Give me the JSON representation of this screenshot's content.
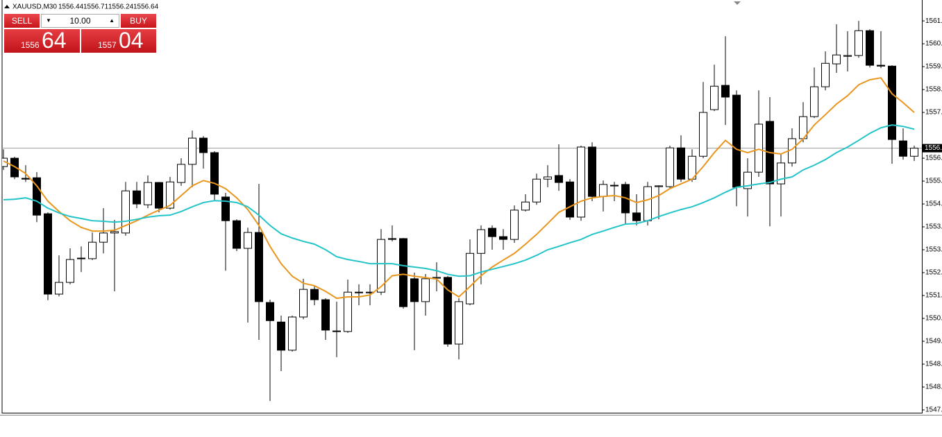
{
  "header": {
    "symbol": "XAUUSD,M30",
    "ohlc": [
      1556.44,
      1556.71,
      1556.24,
      1556.64
    ]
  },
  "trade_panel": {
    "sell": "SELL",
    "buy": "BUY",
    "lots": "10.00",
    "bid_big": "1556",
    "bid_small": "64",
    "ask_big": "1557",
    "ask_small": "04"
  },
  "chart_data": {
    "type": "candlestick",
    "ylim": [
      1547.16,
      1561.7
    ],
    "yticks": [
      {
        "value": 1561.2,
        "label": "1561."
      },
      {
        "value": 1560.38,
        "label": "1560."
      },
      {
        "value": 1559.56,
        "label": "1559."
      },
      {
        "value": 1558.74,
        "label": "1558."
      },
      {
        "value": 1557.92,
        "label": "1557."
      },
      {
        "value": 1556.28,
        "label": "1556."
      },
      {
        "value": 1555.46,
        "label": "1555."
      },
      {
        "value": 1554.64,
        "label": "1554."
      },
      {
        "value": 1553.82,
        "label": "1553."
      },
      {
        "value": 1553.0,
        "label": "1553."
      },
      {
        "value": 1552.18,
        "label": "1552."
      },
      {
        "value": 1551.36,
        "label": "1551."
      },
      {
        "value": 1550.54,
        "label": "1550."
      },
      {
        "value": 1549.72,
        "label": "1549."
      },
      {
        "value": 1548.9,
        "label": "1548."
      },
      {
        "value": 1548.08,
        "label": "1548."
      },
      {
        "value": 1547.26,
        "label": "1547."
      }
    ],
    "current_price": {
      "value": 1556.64,
      "label": "1556."
    },
    "up_color": "#ffffff",
    "down_color": "#000000",
    "open": [
      1555.98,
      1556.28,
      1555.56,
      1555.58,
      1554.29,
      1551.41,
      1551.83,
      1552.68,
      1552.68,
      1553.27,
      1553.6,
      1553.6,
      1555.11,
      1554.61,
      1555.41,
      1554.49,
      1555.41,
      1556.06,
      1557.0,
      1556.48,
      1554.89,
      1554.04,
      1553.05,
      1553.62,
      1551.11,
      1550.41,
      1549.4,
      1550.59,
      1551.58,
      1551.21,
      1550.09,
      1550.07,
      1551.46,
      1551.48,
      1551.48,
      1553.4,
      1553.4,
      1551.96,
      1551.14,
      1551.98,
      1552.01,
      1549.62,
      1551.06,
      1552.87,
      1553.77,
      1553.47,
      1553.37,
      1554.42,
      1554.71,
      1555.53,
      1555.66,
      1555.43,
      1554.17,
      1556.68,
      1554.91,
      1555.31,
      1555.34,
      1554.32,
      1554.04,
      1555.26,
      1555.26,
      1556.65,
      1555.53,
      1556.35,
      1558.02,
      1558.89,
      1558.54,
      1555.19,
      1555.78,
      1557.6,
      1555.36,
      1556.11,
      1556.98,
      1557.77,
      1558.84,
      1559.66,
      1559.93,
      1559.96,
      1560.85,
      1559.61,
      1559.58,
      1556.9,
      1556.35
    ],
    "high": [
      1556.6,
      1556.33,
      1556.03,
      1555.78,
      1554.34,
      1552.8,
      1553.05,
      1553.12,
      1553.62,
      1554.49,
      1554.07,
      1555.43,
      1555.43,
      1555.66,
      1555.43,
      1555.61,
      1556.28,
      1557.27,
      1557.07,
      1556.53,
      1555.04,
      1554.09,
      1553.79,
      1555.36,
      1551.21,
      1550.64,
      1550.64,
      1551.96,
      1551.71,
      1551.26,
      1551.14,
      1551.93,
      1551.76,
      1551.76,
      1553.74,
      1553.87,
      1553.42,
      1552.18,
      1552.13,
      1552.55,
      1552.06,
      1551.26,
      1553.37,
      1553.87,
      1553.87,
      1553.74,
      1554.59,
      1554.99,
      1555.73,
      1556.03,
      1556.78,
      1555.53,
      1556.73,
      1556.85,
      1555.48,
      1555.43,
      1555.43,
      1554.99,
      1555.43,
      1555.31,
      1556.73,
      1557.1,
      1556.6,
      1559.01,
      1559.63,
      1560.65,
      1558.71,
      1556.28,
      1558.71,
      1558.47,
      1556.43,
      1557.35,
      1558.29,
      1559.53,
      1560.11,
      1561.08,
      1560.83,
      1561.2,
      1560.9,
      1560.83,
      1559.61,
      1557.35,
      1556.73
    ],
    "low": [
      1555.86,
      1555.53,
      1555.43,
      1553.99,
      1551.19,
      1551.33,
      1551.76,
      1552.2,
      1552.63,
      1552.87,
      1551.51,
      1553.5,
      1554.49,
      1554.49,
      1554.34,
      1554.44,
      1555.29,
      1555.24,
      1555.91,
      1554.74,
      1552.25,
      1552.95,
      1550.39,
      1549.77,
      1547.58,
      1548.65,
      1549.35,
      1550.51,
      1551.01,
      1549.77,
      1549.15,
      1550.02,
      1551.01,
      1551.01,
      1551.38,
      1553.3,
      1550.89,
      1549.4,
      1550.64,
      1551.51,
      1549.52,
      1549.07,
      1551.01,
      1551.76,
      1553.0,
      1553.0,
      1553.25,
      1554.37,
      1554.61,
      1555.24,
      1555.11,
      1554.07,
      1554.04,
      1554.74,
      1554.37,
      1554.74,
      1553.92,
      1553.87,
      1553.87,
      1554.09,
      1555.19,
      1555.43,
      1555.43,
      1556.28,
      1557.97,
      1557.47,
      1554.56,
      1554.19,
      1555.61,
      1553.84,
      1554.19,
      1555.98,
      1556.85,
      1557.72,
      1558.71,
      1559.34,
      1559.39,
      1559.88,
      1559.53,
      1559.51,
      1556.08,
      1556.23,
      1556.18
    ],
    "close": [
      1556.28,
      1555.61,
      1555.53,
      1554.24,
      1551.41,
      1551.83,
      1552.65,
      1552.7,
      1553.27,
      1553.6,
      1553.65,
      1555.11,
      1554.64,
      1555.41,
      1554.49,
      1555.43,
      1556.06,
      1557.0,
      1556.48,
      1554.99,
      1554.04,
      1553.05,
      1553.62,
      1551.14,
      1550.46,
      1549.4,
      1550.59,
      1551.58,
      1551.21,
      1550.12,
      1550.07,
      1551.48,
      1551.48,
      1551.46,
      1553.37,
      1553.37,
      1550.96,
      1551.14,
      1551.96,
      1552.01,
      1549.62,
      1551.14,
      1552.87,
      1553.72,
      1553.47,
      1553.37,
      1554.42,
      1554.71,
      1555.53,
      1555.61,
      1555.41,
      1554.17,
      1556.68,
      1554.91,
      1555.34,
      1555.29,
      1554.32,
      1554.04,
      1555.26,
      1555.29,
      1556.65,
      1555.53,
      1556.35,
      1557.92,
      1558.86,
      1558.47,
      1555.24,
      1555.78,
      1557.5,
      1555.36,
      1556.11,
      1556.98,
      1557.77,
      1558.84,
      1559.68,
      1559.98,
      1559.96,
      1560.85,
      1559.61,
      1559.58,
      1556.95,
      1556.35,
      1556.64
    ],
    "series": [
      {
        "color": "#e8961e",
        "values": [
          1556.18,
          1555.98,
          1555.73,
          1555.29,
          1554.74,
          1554.37,
          1554.04,
          1553.8,
          1553.67,
          1553.67,
          1553.7,
          1553.87,
          1554.04,
          1554.24,
          1554.42,
          1554.59,
          1554.94,
          1555.29,
          1555.48,
          1555.38,
          1555.19,
          1554.86,
          1554.44,
          1553.87,
          1553.12,
          1552.5,
          1552.05,
          1551.8,
          1551.71,
          1551.51,
          1551.26,
          1551.31,
          1551.31,
          1551.38,
          1551.68,
          1552.07,
          1552.12,
          1552.05,
          1552.0,
          1551.95,
          1551.56,
          1551.31,
          1551.68,
          1552.07,
          1552.38,
          1552.63,
          1552.87,
          1553.2,
          1553.55,
          1553.94,
          1554.34,
          1554.54,
          1554.74,
          1554.86,
          1554.91,
          1554.94,
          1554.86,
          1554.69,
          1554.79,
          1554.94,
          1555.19,
          1555.36,
          1555.53,
          1555.98,
          1556.48,
          1556.92,
          1556.6,
          1556.48,
          1556.6,
          1556.48,
          1556.43,
          1556.6,
          1556.97,
          1557.47,
          1557.84,
          1558.22,
          1558.52,
          1558.91,
          1559.09,
          1559.16,
          1558.59,
          1558.27,
          1557.92
        ]
      },
      {
        "color": "#22c4c8",
        "values": [
          1554.79,
          1554.81,
          1554.86,
          1554.74,
          1554.49,
          1554.32,
          1554.19,
          1554.12,
          1554.04,
          1554.02,
          1553.99,
          1554.02,
          1554.09,
          1554.17,
          1554.22,
          1554.24,
          1554.37,
          1554.54,
          1554.69,
          1554.76,
          1554.74,
          1554.69,
          1554.54,
          1554.24,
          1553.87,
          1553.57,
          1553.42,
          1553.3,
          1553.2,
          1553.0,
          1552.75,
          1552.65,
          1552.58,
          1552.5,
          1552.5,
          1552.5,
          1552.43,
          1552.38,
          1552.33,
          1552.25,
          1552.12,
          1552.05,
          1552.07,
          1552.2,
          1552.3,
          1552.4,
          1552.5,
          1552.63,
          1552.8,
          1553.0,
          1553.12,
          1553.25,
          1553.37,
          1553.55,
          1553.67,
          1553.8,
          1553.92,
          1553.94,
          1554.04,
          1554.19,
          1554.32,
          1554.44,
          1554.54,
          1554.69,
          1554.86,
          1555.06,
          1555.24,
          1555.29,
          1555.36,
          1555.41,
          1555.53,
          1555.61,
          1555.86,
          1556.03,
          1556.23,
          1556.48,
          1556.68,
          1556.92,
          1557.17,
          1557.37,
          1557.47,
          1557.42,
          1557.32
        ]
      }
    ]
  }
}
